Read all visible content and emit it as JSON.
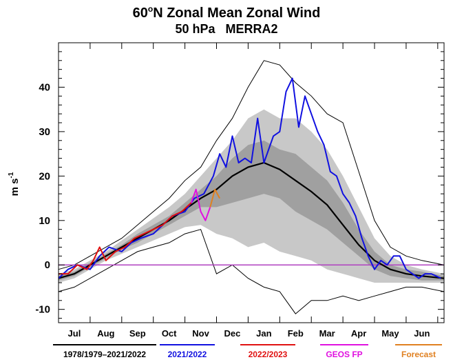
{
  "chart_data": {
    "type": "line",
    "title": "60°N Zonal Mean Zonal Wind",
    "title_parts": {
      "prefix": "60",
      "degree": "o",
      "rest": "N Zonal Mean Zonal Wind"
    },
    "subtitle": "50 hPa   MERRA2",
    "ylabel": "m s",
    "ylabel_exponent": "-1",
    "xlabel": "",
    "ylim": [
      -13,
      50
    ],
    "yticks": [
      -10,
      0,
      10,
      20,
      30,
      40
    ],
    "x_unit": "month index (0 = 1 Jul)",
    "xlim": [
      0,
      12.2
    ],
    "months": [
      {
        "label": "Jul",
        "x": 0.5
      },
      {
        "label": "Aug",
        "x": 1.5
      },
      {
        "label": "Sep",
        "x": 2.5
      },
      {
        "label": "Oct",
        "x": 3.5
      },
      {
        "label": "Nov",
        "x": 4.5
      },
      {
        "label": "Dec",
        "x": 5.5
      },
      {
        "label": "Jan",
        "x": 6.5
      },
      {
        "label": "Feb",
        "x": 7.5
      },
      {
        "label": "Mar",
        "x": 8.5
      },
      {
        "label": "Apr",
        "x": 9.5
      },
      {
        "label": "May",
        "x": 10.5
      },
      {
        "label": "Jun",
        "x": 11.5
      }
    ],
    "zero_line_color": "#b040c0",
    "climatology": {
      "x": [
        0,
        0.5,
        1,
        1.5,
        2,
        2.5,
        3,
        3.5,
        4,
        4.5,
        5,
        5.5,
        6,
        6.5,
        7,
        7.5,
        8,
        8.5,
        9,
        9.5,
        10,
        10.5,
        11,
        11.5,
        12.2
      ],
      "mean": [
        -3,
        -2,
        0,
        2,
        4,
        6,
        8,
        10,
        12.5,
        15,
        17,
        20,
        22,
        23,
        21.5,
        19,
        16.5,
        13.5,
        9,
        4.5,
        1,
        -1,
        -2,
        -2.5,
        -3
      ],
      "p10": [
        -4,
        -3,
        -1,
        1,
        2.5,
        4,
        5.5,
        7,
        8.5,
        9,
        7,
        6,
        4,
        5,
        3,
        2,
        1,
        -1,
        -2,
        -3,
        -4,
        -4,
        -4,
        -4,
        -4
      ],
      "p30": [
        -3.5,
        -2.5,
        -0.5,
        1.5,
        3.5,
        5,
        7,
        9,
        11,
        13,
        13,
        14,
        15,
        16,
        15,
        12,
        10,
        8,
        5,
        2,
        -1,
        -2.5,
        -3,
        -3.5,
        -3.5
      ],
      "p70": [
        -2.5,
        -1.5,
        0.5,
        2.5,
        4.5,
        7,
        9,
        11,
        14,
        17,
        20,
        24,
        27,
        28,
        26,
        25,
        22,
        19,
        14,
        8,
        3,
        0,
        -1,
        -1.5,
        -2.5
      ],
      "p90": [
        -2,
        -1,
        1,
        3,
        5.5,
        8,
        10.5,
        13,
        16,
        20,
        24,
        28,
        33,
        35,
        33,
        33,
        30,
        26,
        20,
        13,
        6,
        2,
        0,
        -1,
        -2
      ],
      "min": [
        -6,
        -5,
        -3,
        -1,
        1,
        3,
        4,
        5,
        7,
        8,
        -2,
        0,
        -3,
        -5,
        -6,
        -11,
        -8,
        -8,
        -7,
        -8,
        -7,
        -6,
        -5,
        -5,
        -6
      ],
      "max": [
        -1,
        0,
        2,
        4,
        6,
        9,
        12,
        15,
        19,
        22,
        28,
        33,
        40,
        46,
        45,
        41,
        38,
        34,
        32,
        21,
        10,
        4,
        2,
        1,
        0
      ]
    },
    "series": [
      {
        "name": "2021/2022",
        "color": "#1010e0",
        "x": [
          0,
          0.3,
          0.6,
          1,
          1.3,
          1.6,
          2,
          2.3,
          2.6,
          3,
          3.3,
          3.6,
          4,
          4.3,
          4.6,
          4.9,
          5.1,
          5.3,
          5.5,
          5.7,
          5.9,
          6.1,
          6.3,
          6.5,
          6.8,
          7.0,
          7.2,
          7.4,
          7.6,
          7.8,
          8.0,
          8.2,
          8.4,
          8.6,
          8.8,
          9.0,
          9.2,
          9.4,
          9.6,
          9.8,
          10.0,
          10.2,
          10.4,
          10.6,
          10.8,
          11.0,
          11.2,
          11.4,
          11.6,
          11.8,
          12.1
        ],
        "values": [
          -3,
          -1,
          0,
          -1,
          2,
          4,
          3,
          5,
          6,
          7,
          9,
          11,
          12,
          15,
          16,
          20,
          25,
          22,
          29,
          23,
          24,
          23,
          33,
          23,
          29,
          30,
          39,
          42,
          31,
          38,
          34,
          30,
          27,
          21,
          20,
          16,
          14,
          11,
          6,
          2,
          -1,
          1,
          0,
          2,
          2,
          -1,
          -2,
          -3,
          -2,
          -2,
          -3
        ]
      },
      {
        "name": "2022/2023",
        "color": "#e01010",
        "x": [
          0,
          0.3,
          0.6,
          0.9,
          1.1,
          1.3,
          1.5,
          1.8,
          2.1,
          2.4,
          2.7,
          3.0,
          3.3,
          3.6,
          3.9,
          4.2
        ],
        "values": [
          -2,
          -2,
          0,
          -1,
          1,
          4,
          1,
          3,
          4,
          6,
          7,
          8,
          9,
          11,
          12,
          14
        ]
      },
      {
        "name": "GEOS FP",
        "color": "#e010e0",
        "x": [
          4.2,
          4.35,
          4.5,
          4.65,
          4.8
        ],
        "values": [
          14,
          17,
          12,
          10,
          13
        ]
      },
      {
        "name": "Forecast",
        "color": "#e08020",
        "x": [
          4.8,
          4.95,
          5.1
        ],
        "values": [
          13,
          17,
          15
        ]
      }
    ],
    "legend": [
      {
        "label": "1978/1979–2021/2022",
        "color": "#000000"
      },
      {
        "label": "2021/2022",
        "color": "#1010e0"
      },
      {
        "label": "2022/2023",
        "color": "#e01010"
      },
      {
        "label": "GEOS FP",
        "color": "#e010e0"
      },
      {
        "label": "Forecast",
        "color": "#e08020"
      }
    ],
    "band_colors": {
      "outer": "#c8c8c8",
      "middle": "#a0a0a0",
      "inner": "#707070"
    },
    "legend_placement": "bottom",
    "grid": false
  }
}
